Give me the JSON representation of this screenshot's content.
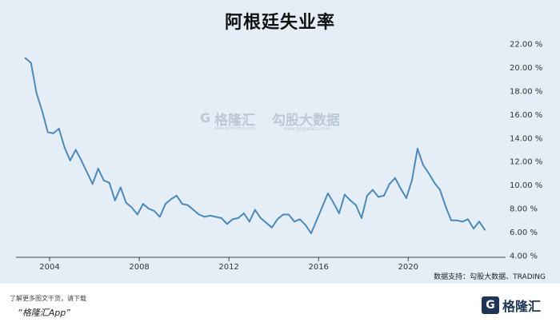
{
  "chart_data": {
    "type": "line",
    "title": "阿根廷失业率",
    "xlabel": "",
    "ylabel": "",
    "x_tick_labels": [
      "2004",
      "2008",
      "2012",
      "2016",
      "2020"
    ],
    "y_tick_labels": [
      "4.00 %",
      "6.00 %",
      "8.00 %",
      "10.00 %",
      "12.00 %",
      "14.00 %",
      "16.00 %",
      "18.00 %",
      "20.00 %",
      "22.00 %"
    ],
    "ylim": [
      4,
      22
    ],
    "xlim": [
      "2002-07",
      "2023-12"
    ],
    "grid": false,
    "series": [
      {
        "color": "#4a89c0",
        "points": [
          [
            "2002-12",
            20.8
          ],
          [
            "2003-03",
            20.4
          ],
          [
            "2003-06",
            17.8
          ],
          [
            "2003-09",
            16.3
          ],
          [
            "2003-12",
            14.5
          ],
          [
            "2004-03",
            14.4
          ],
          [
            "2004-06",
            14.8
          ],
          [
            "2004-09",
            13.2
          ],
          [
            "2004-12",
            12.1
          ],
          [
            "2005-03",
            13.0
          ],
          [
            "2005-06",
            12.1
          ],
          [
            "2005-09",
            11.1
          ],
          [
            "2005-12",
            10.1
          ],
          [
            "2006-03",
            11.4
          ],
          [
            "2006-06",
            10.4
          ],
          [
            "2006-09",
            10.2
          ],
          [
            "2006-12",
            8.7
          ],
          [
            "2007-03",
            9.8
          ],
          [
            "2007-06",
            8.5
          ],
          [
            "2007-09",
            8.1
          ],
          [
            "2007-12",
            7.5
          ],
          [
            "2008-03",
            8.4
          ],
          [
            "2008-06",
            8.0
          ],
          [
            "2008-09",
            7.8
          ],
          [
            "2008-12",
            7.3
          ],
          [
            "2009-03",
            8.4
          ],
          [
            "2009-06",
            8.8
          ],
          [
            "2009-09",
            9.1
          ],
          [
            "2009-12",
            8.4
          ],
          [
            "2010-03",
            8.3
          ],
          [
            "2010-06",
            7.9
          ],
          [
            "2010-09",
            7.5
          ],
          [
            "2010-12",
            7.3
          ],
          [
            "2011-03",
            7.4
          ],
          [
            "2011-06",
            7.3
          ],
          [
            "2011-09",
            7.2
          ],
          [
            "2011-12",
            6.7
          ],
          [
            "2012-03",
            7.1
          ],
          [
            "2012-06",
            7.2
          ],
          [
            "2012-09",
            7.6
          ],
          [
            "2012-12",
            6.9
          ],
          [
            "2013-03",
            7.9
          ],
          [
            "2013-06",
            7.2
          ],
          [
            "2013-09",
            6.8
          ],
          [
            "2013-12",
            6.4
          ],
          [
            "2014-03",
            7.1
          ],
          [
            "2014-06",
            7.5
          ],
          [
            "2014-09",
            7.5
          ],
          [
            "2014-12",
            6.9
          ],
          [
            "2015-03",
            7.1
          ],
          [
            "2015-06",
            6.6
          ],
          [
            "2015-09",
            5.9
          ],
          [
            "2016-06",
            9.3
          ],
          [
            "2016-09",
            8.5
          ],
          [
            "2016-12",
            7.6
          ],
          [
            "2017-03",
            9.2
          ],
          [
            "2017-06",
            8.7
          ],
          [
            "2017-09",
            8.3
          ],
          [
            "2017-12",
            7.2
          ],
          [
            "2018-03",
            9.1
          ],
          [
            "2018-06",
            9.6
          ],
          [
            "2018-09",
            9.0
          ],
          [
            "2018-12",
            9.1
          ],
          [
            "2019-03",
            10.1
          ],
          [
            "2019-06",
            10.6
          ],
          [
            "2019-09",
            9.7
          ],
          [
            "2019-12",
            8.9
          ],
          [
            "2020-03",
            10.4
          ],
          [
            "2020-06",
            13.1
          ],
          [
            "2020-09",
            11.7
          ],
          [
            "2020-12",
            11.0
          ],
          [
            "2021-03",
            10.2
          ],
          [
            "2021-06",
            9.6
          ],
          [
            "2021-09",
            8.2
          ],
          [
            "2021-12",
            7.0
          ],
          [
            "2022-03",
            7.0
          ],
          [
            "2022-06",
            6.9
          ],
          [
            "2022-09",
            7.1
          ],
          [
            "2022-12",
            6.3
          ],
          [
            "2023-03",
            6.9
          ],
          [
            "2023-06",
            6.2
          ]
        ]
      }
    ]
  },
  "watermark": {
    "brand_cn": "格隆汇",
    "brand_url": "www.gelonghui.com",
    "partner_cn": "勾股大数据",
    "partner_url": "www.gogudata.com"
  },
  "source_text": "数据支持：勾股大数据、TRADING",
  "footer": {
    "note": "了解更多图文干货，请下载",
    "app_name": "“格隆汇App”",
    "brand_name": "格隆汇",
    "brand_icon_letter": "G"
  }
}
